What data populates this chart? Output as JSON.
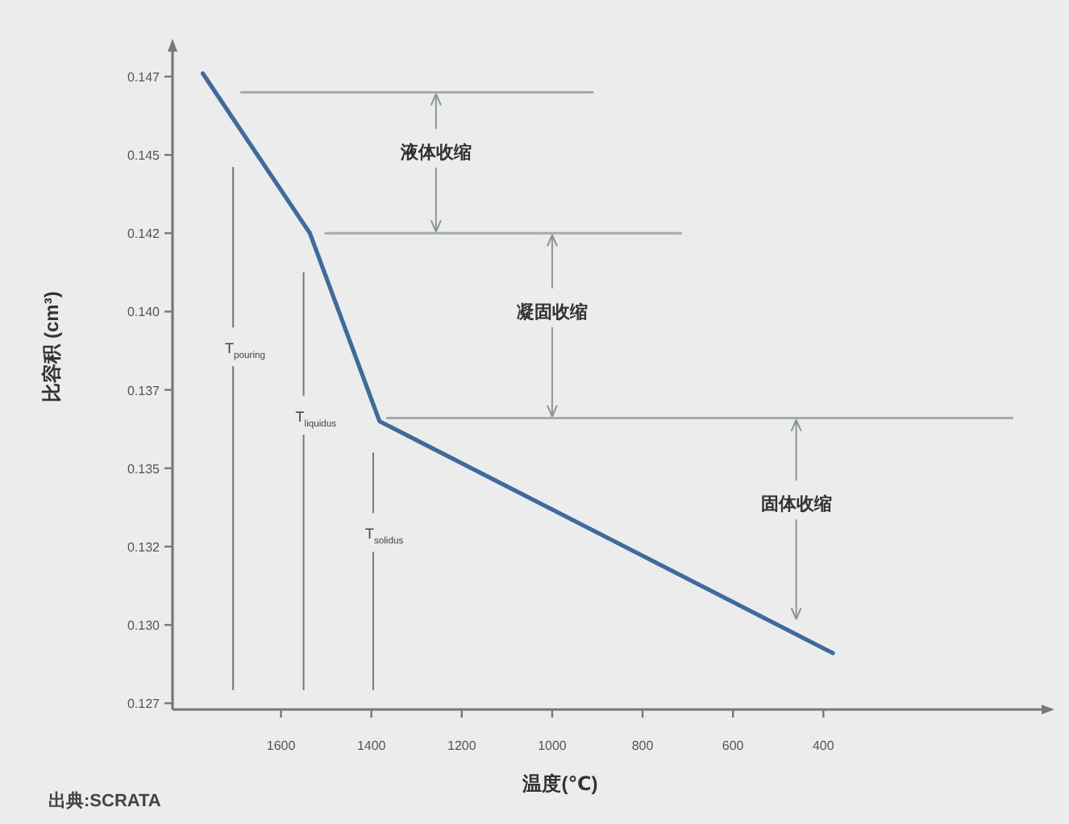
{
  "chart_data": {
    "type": "line",
    "xlabel": "温度(℃)",
    "ylabel": "比容积 (cm³)",
    "xlim": [
      1840,
      -90
    ],
    "ylim": [
      0.1273,
      0.1484
    ],
    "xticks": [
      1600,
      1400,
      1200,
      1000,
      800,
      600,
      400
    ],
    "yticks": [
      {
        "value": 0.1275,
        "label": "0.127"
      },
      {
        "value": 0.13,
        "label": "0.130"
      },
      {
        "value": 0.1325,
        "label": "0.132"
      },
      {
        "value": 0.135,
        "label": "0.135"
      },
      {
        "value": 0.1375,
        "label": "0.137"
      },
      {
        "value": 0.14,
        "label": "0.140"
      },
      {
        "value": 0.1425,
        "label": "0.142"
      },
      {
        "value": 0.145,
        "label": "0.145"
      },
      {
        "value": 0.1475,
        "label": "0.147"
      }
    ],
    "grid": false,
    "series": [
      {
        "color": "#3f6b9c",
        "x": [
          1773,
          1536,
          1382,
          379
        ],
        "values": [
          0.1476,
          0.1425,
          0.1365,
          0.1291
        ]
      },
      {
        "color": "#a3abab",
        "x": [
          1688,
          910
        ],
        "values": [
          0.147,
          0.147
        ]
      },
      {
        "color": "#a3abab",
        "x": [
          1501,
          715
        ],
        "values": [
          0.1425,
          0.1425
        ]
      },
      {
        "color": "#a3abab",
        "x": [
          1365,
          -18
        ],
        "values": [
          0.1366,
          0.1366
        ]
      }
    ],
    "ref_lines": [
      {
        "axis": "x",
        "value": 1706,
        "label": "T$_{pouring}$",
        "color": "#777777"
      },
      {
        "axis": "x",
        "value": 1550,
        "label": "T$_{liquidus}$",
        "color": "#777777"
      },
      {
        "axis": "x",
        "value": 1396,
        "label": "T$_{solidus}$",
        "color": "#777777"
      }
    ],
    "annotations": [
      {
        "text": "液体收缩",
        "x": 1257,
        "y": 0.147
      },
      {
        "text": "凝固收缩",
        "x": 1000,
        "y": 0.1425
      },
      {
        "text": "固体收缩",
        "x": 460,
        "y": 0.1366
      },
      "出典:SCRATA"
    ]
  }
}
